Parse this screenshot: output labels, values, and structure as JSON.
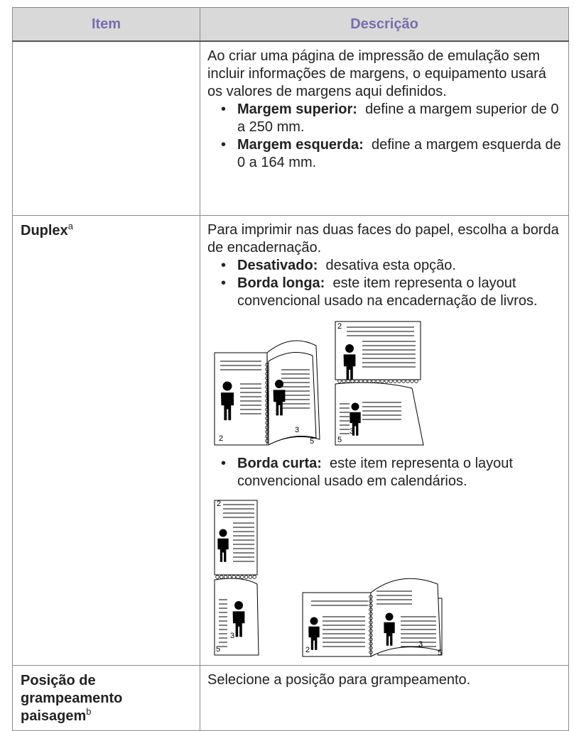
{
  "table": {
    "header": [
      "Item",
      "Descrição"
    ],
    "rows": [
      {
        "description": {
          "intro": "Ao criar uma página de impressão de emulação sem incluir informações de margens, o equipamento usará os valores de margens aqui definidos.",
          "bullets": [
            {
              "term": "Margem superior:",
              "text": "define a margem superior de 0 a 250 mm."
            },
            {
              "term": "Margem esquerda:",
              "text": "define a margem esquerda de 0 a 164 mm."
            }
          ]
        }
      },
      {
        "item": "Duplex",
        "item_note": "a",
        "description": {
          "intro": "Para imprimir nas duas faces do papel, escolha a borda de encadernação.",
          "bullets": [
            {
              "term": "Desativado:",
              "text": "desativa esta opção."
            },
            {
              "term": "Borda longa:",
              "text": "este item representa o layout convencional usado na encadernação de livros."
            },
            {
              "term": "Borda curta:",
              "text": "este item representa o layout convencional usado em calendários."
            }
          ],
          "figures": [
            {
              "labels": [
                "2",
                "3",
                "5"
              ]
            },
            {
              "labels": [
                "2",
                "3",
                "5"
              ]
            },
            {
              "labels": [
                "2",
                "3",
                "5"
              ]
            },
            {
              "labels": [
                "2",
                "3",
                "5"
              ]
            }
          ]
        }
      },
      {
        "item": "Posição de grampeamento paisagem",
        "item_note": "b",
        "description": {
          "intro": "Selecione a posição para grampeamento."
        }
      }
    ]
  }
}
